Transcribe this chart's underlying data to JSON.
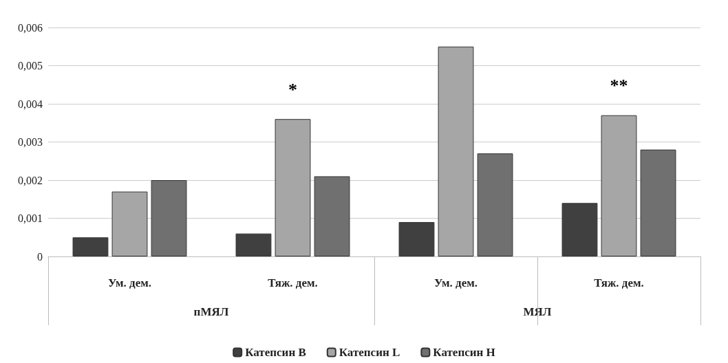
{
  "chart_data": {
    "type": "bar",
    "categories": [
      "Ум. дем.",
      "Тяж. дем.",
      "Ум. дем.",
      "Тяж. дем."
    ],
    "series": [
      {
        "name": "Катепсин B",
        "color": "#404040",
        "values": [
          0.0005,
          0.0006,
          0.0009,
          0.0014
        ]
      },
      {
        "name": "Катепсин L",
        "color": "#a6a6a6",
        "values": [
          0.0017,
          0.0036,
          0.0055,
          0.0037
        ],
        "value_labels": [
          null,
          "*",
          null,
          "**"
        ]
      },
      {
        "name": "Катепсин H",
        "color": "#707070",
        "values": [
          0.002,
          0.0021,
          0.0027,
          0.0028
        ]
      }
    ],
    "ylim": [
      0,
      0.006
    ],
    "yticks": [
      0,
      {
        "value": 0.001,
        "label": "0,001"
      },
      {
        "value": 0.002,
        "label": "0,002"
      },
      {
        "value": 0.003,
        "label": "0,003"
      },
      {
        "value": 0.004,
        "label": "0,004"
      },
      {
        "value": 0.005,
        "label": "0,005"
      },
      {
        "value": 0.006,
        "label": "0,006"
      }
    ],
    "annotations": [
      "пМЯЛ",
      "МЯЛ"
    ],
    "grid": "y",
    "legend": "bottom"
  }
}
